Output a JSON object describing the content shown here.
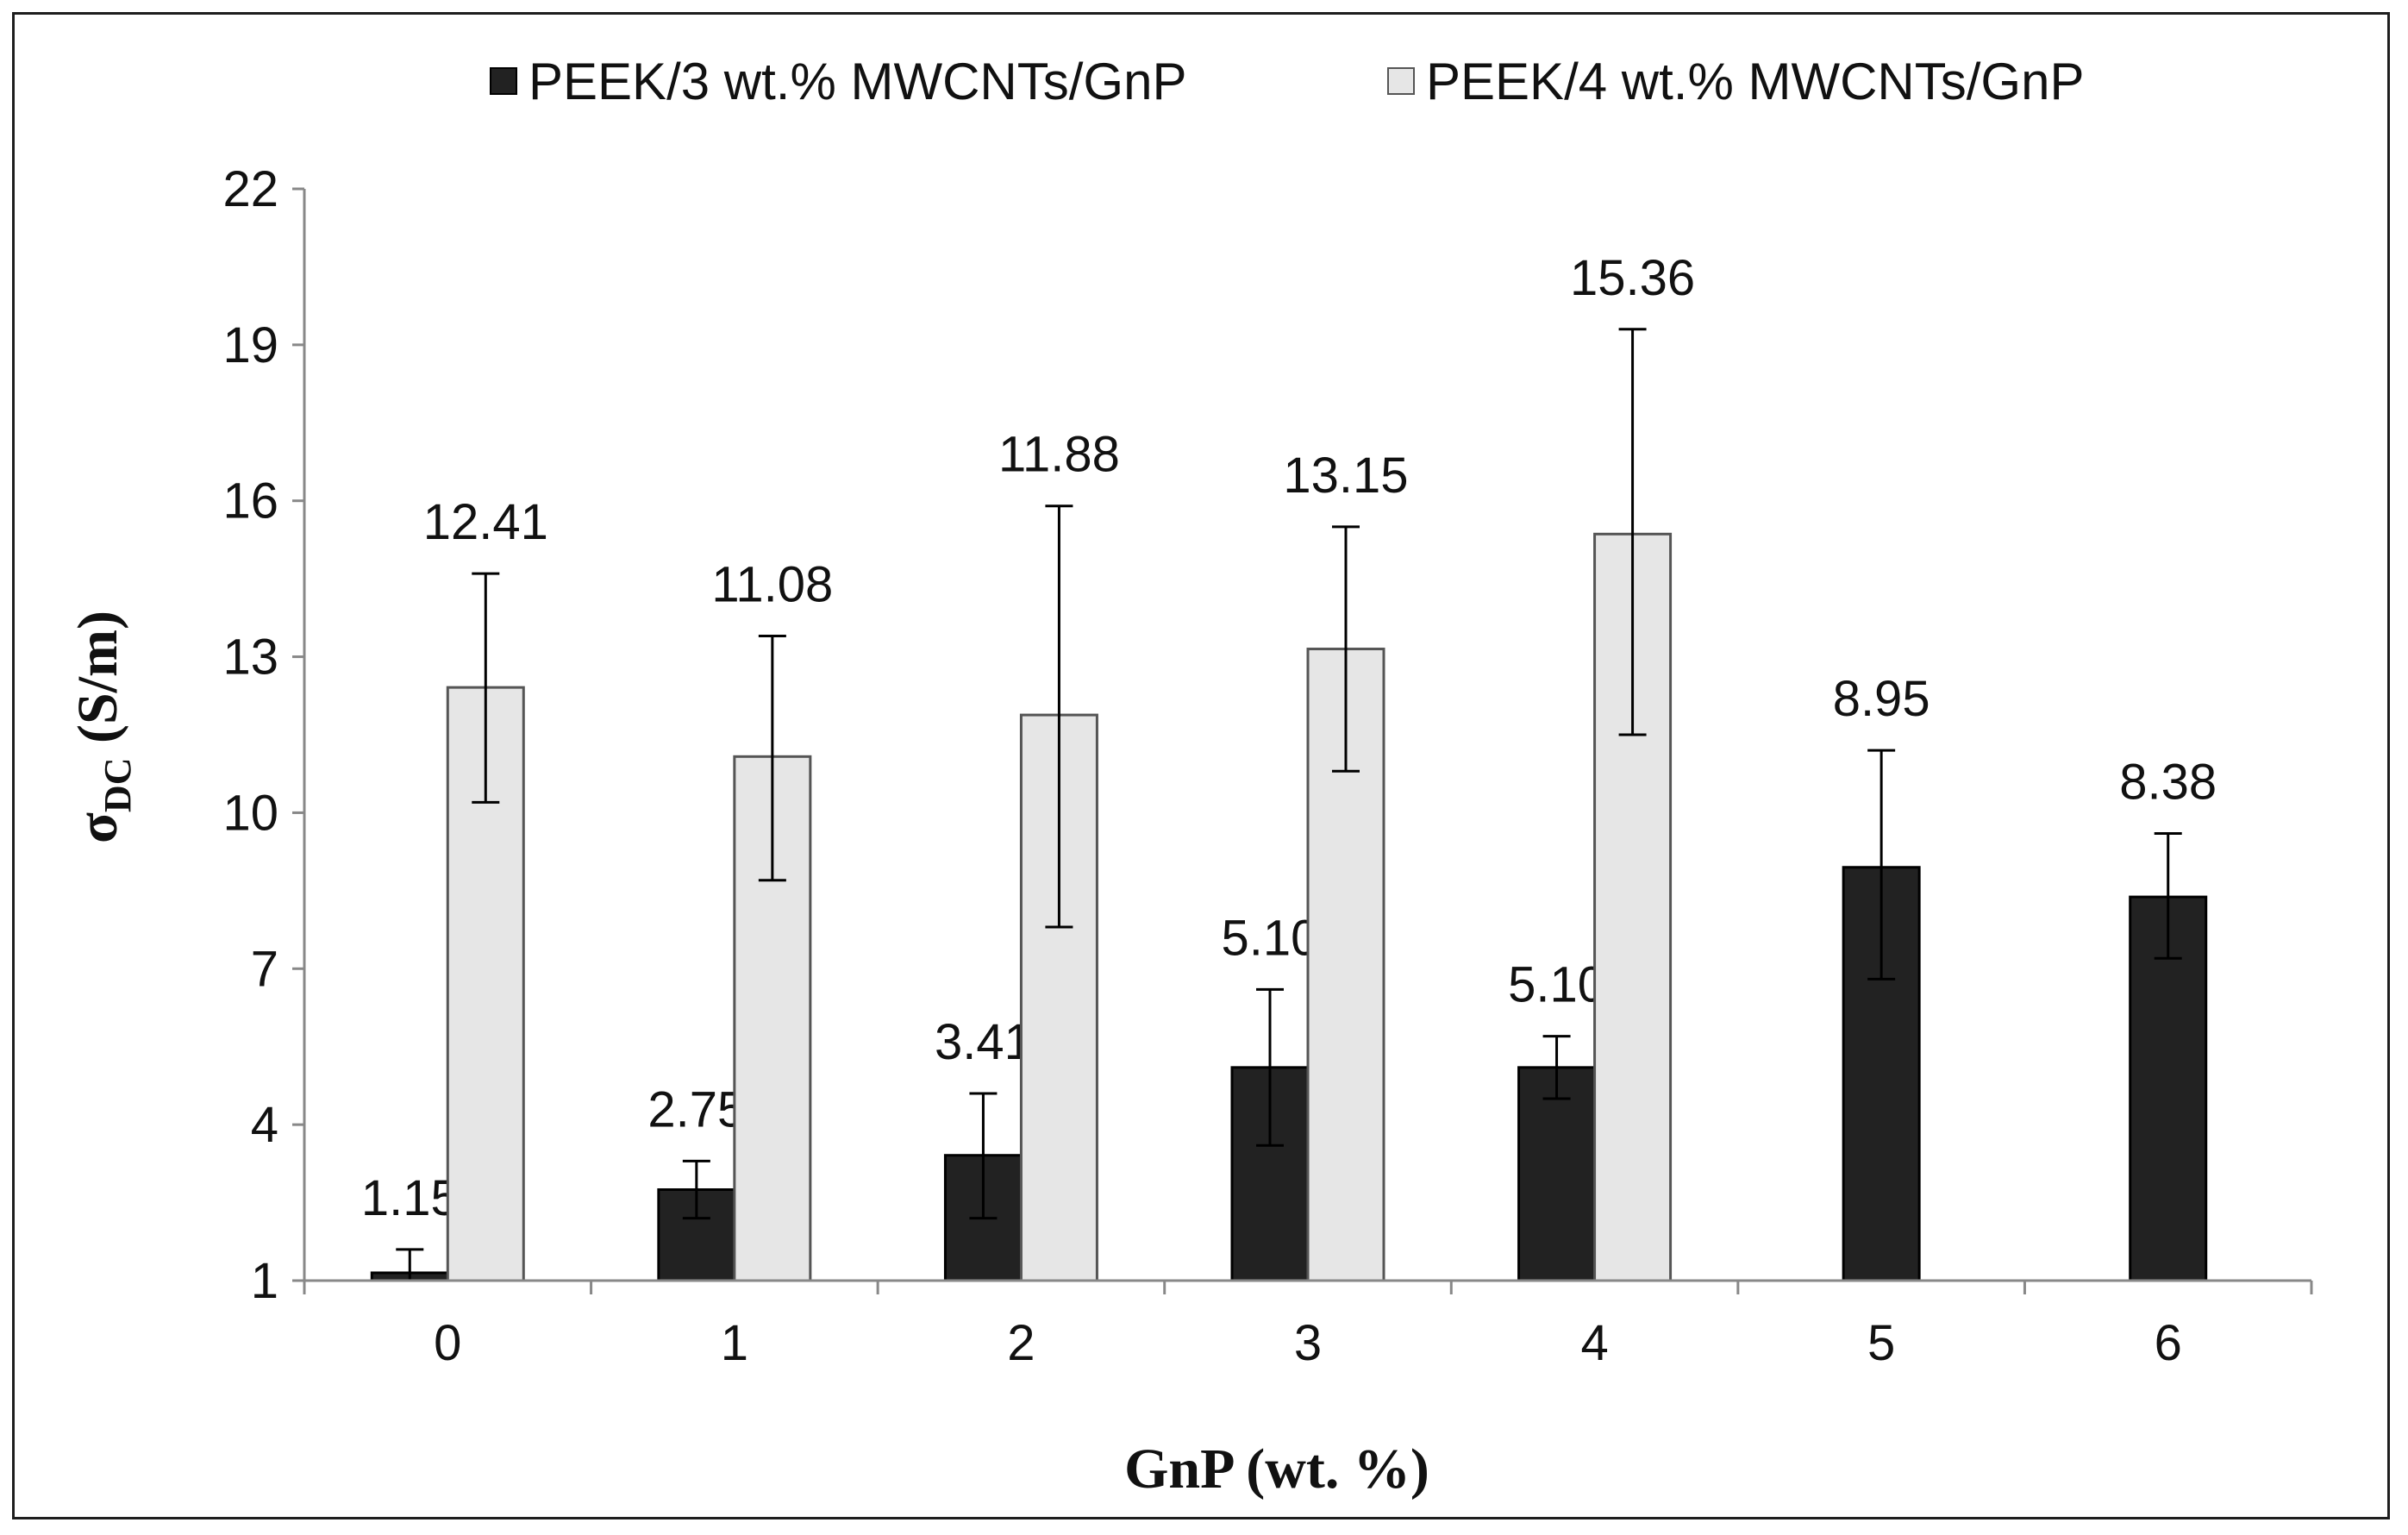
{
  "chart_data": {
    "type": "bar",
    "title": "",
    "xlabel": "GnP (wt. %)",
    "ylabel": {
      "main": "σ",
      "sub": "DC",
      "unit": " (S/m)"
    },
    "categories": [
      "0",
      "1",
      "2",
      "3",
      "4",
      "5",
      "6"
    ],
    "ylim": [
      1,
      22
    ],
    "yticks": [
      "1",
      "4",
      "7",
      "10",
      "13",
      "16",
      "19",
      "22"
    ],
    "legend_position": "top",
    "grid": false,
    "series": [
      {
        "name": "PEEK/3 wt.% MWCNTs/GnP",
        "color": "#222222",
        "values": [
          1.15,
          2.75,
          3.41,
          5.1,
          5.1,
          8.95,
          8.38
        ],
        "labels": [
          "1.15",
          "2.75",
          "3.41",
          "5.10",
          "5.10",
          "8.95",
          "8.38"
        ],
        "err_low": [
          1.0,
          2.2,
          2.2,
          3.6,
          4.5,
          6.8,
          7.2
        ],
        "err_high": [
          1.6,
          3.3,
          4.6,
          6.6,
          5.7,
          11.2,
          9.6
        ]
      },
      {
        "name": "PEEK/4 wt.% MWCNTs/GnP",
        "color": "#e6e6e6",
        "values": [
          12.41,
          11.08,
          11.88,
          13.15,
          15.36,
          null,
          null
        ],
        "labels": [
          "12.41",
          "11.08",
          "11.88",
          "13.15",
          "15.36",
          "",
          ""
        ],
        "err_low": [
          10.2,
          8.7,
          7.8,
          10.8,
          11.5,
          null,
          null
        ],
        "err_high": [
          14.6,
          13.4,
          15.9,
          15.5,
          19.3,
          null,
          null
        ]
      }
    ]
  }
}
